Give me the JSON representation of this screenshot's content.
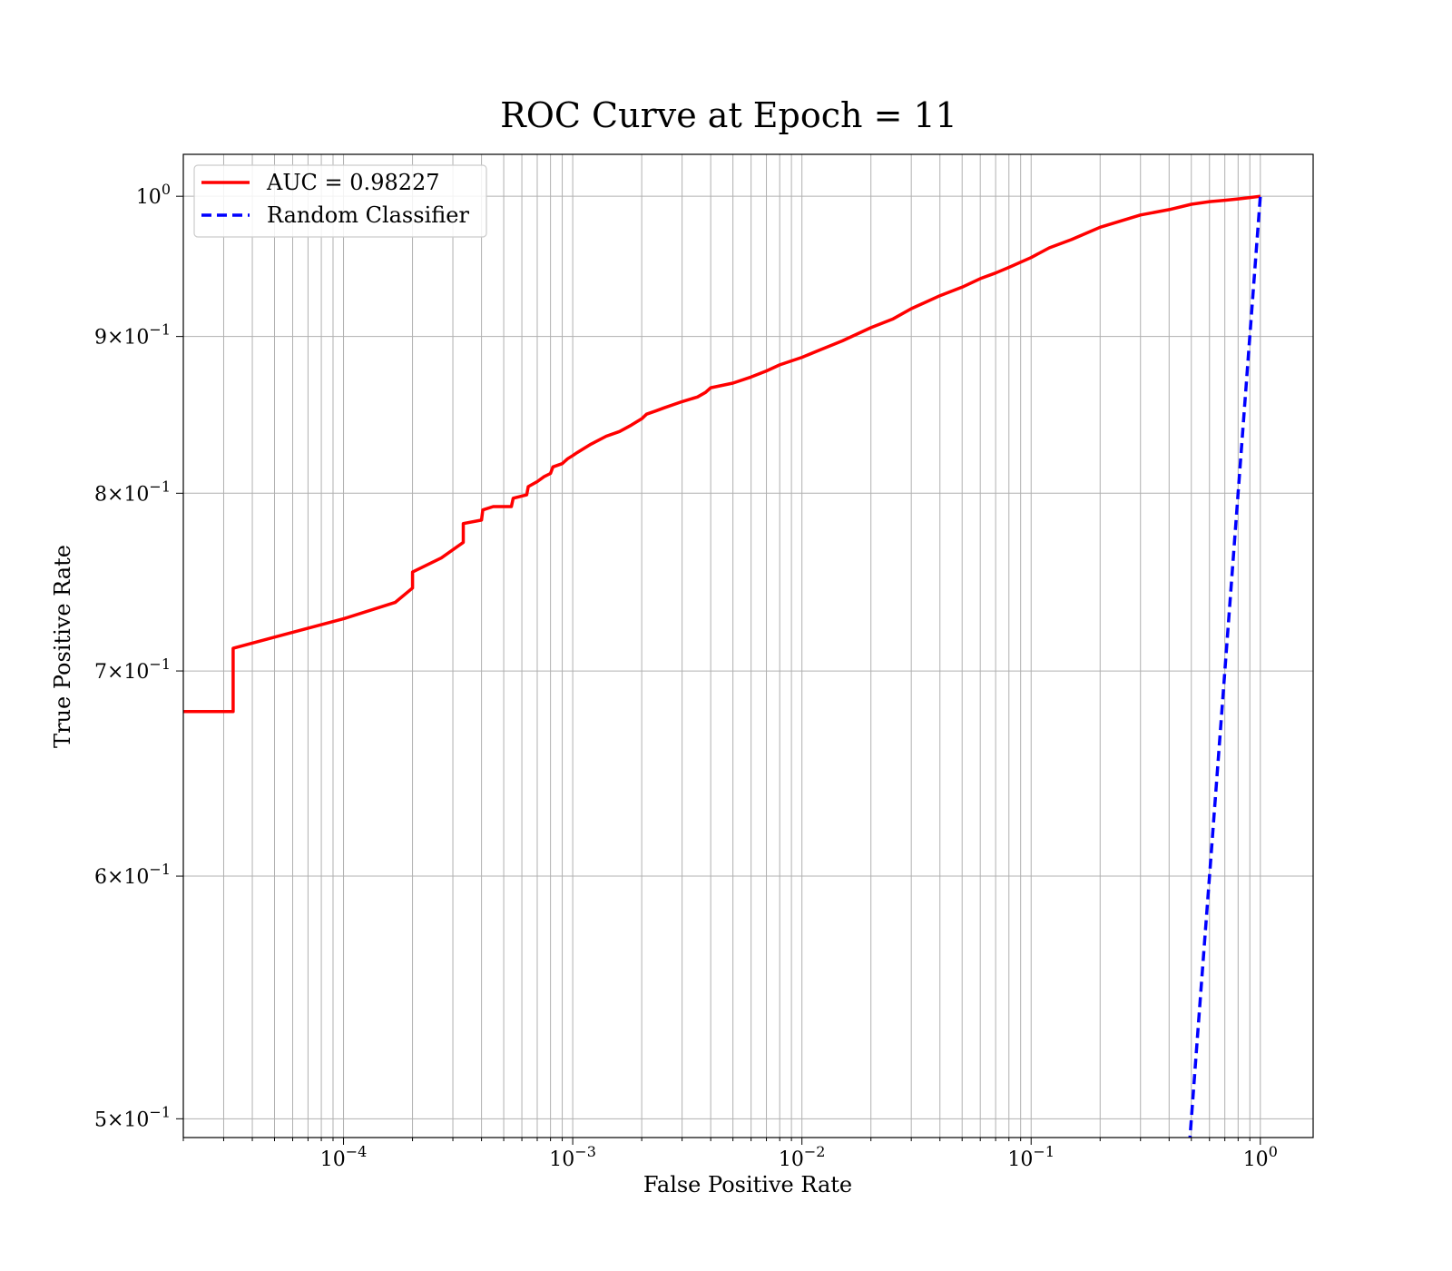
{
  "chart_data": {
    "type": "line",
    "title": "ROC Curve at Epoch = 11",
    "xlabel": "False Positive Rate",
    "ylabel": "True Positive Rate",
    "xscale": "log",
    "yscale": "log",
    "xlim": [
      2e-05,
      1.7
    ],
    "ylim": [
      0.493,
      1.032
    ],
    "grid": true,
    "grid_minor": true,
    "legend_position": "top-left",
    "x_ticks": [
      {
        "value": 0.0001,
        "base": "10",
        "exp": "−4"
      },
      {
        "value": 0.001,
        "base": "10",
        "exp": "−3"
      },
      {
        "value": 0.01,
        "base": "10",
        "exp": "−2"
      },
      {
        "value": 0.1,
        "base": "10",
        "exp": "−1"
      },
      {
        "value": 1,
        "base": "10",
        "exp": "0"
      }
    ],
    "y_ticks": [
      {
        "value": 0.5,
        "mant": "5",
        "base": "10",
        "exp": "−1"
      },
      {
        "value": 0.6,
        "mant": "6",
        "base": "10",
        "exp": "−1"
      },
      {
        "value": 0.7,
        "mant": "7",
        "base": "10",
        "exp": "−1"
      },
      {
        "value": 0.8,
        "mant": "8",
        "base": "10",
        "exp": "−1"
      },
      {
        "value": 0.9,
        "mant": "9",
        "base": "10",
        "exp": "−1"
      },
      {
        "value": 1.0,
        "mant": "",
        "base": "10",
        "exp": "0"
      }
    ],
    "series": [
      {
        "name": "AUC = 0.98227",
        "color": "#ff0000",
        "dash": "solid",
        "x": [
          2e-05,
          3.3e-05,
          3.3e-05,
          5e-05,
          0.0001,
          0.000168,
          0.0002,
          0.0002,
          0.000267,
          0.000333,
          0.000333,
          0.0004,
          0.000405,
          0.00045,
          0.00054,
          0.00055,
          0.00063,
          0.00064,
          0.0007,
          0.00075,
          0.0008,
          0.00082,
          0.0009,
          0.00095,
          0.001,
          0.00105,
          0.0012,
          0.0014,
          0.0016,
          0.0018,
          0.002,
          0.0021,
          0.0023,
          0.0025,
          0.003,
          0.0035,
          0.0038,
          0.004,
          0.005,
          0.006,
          0.007,
          0.008,
          0.01,
          0.012,
          0.015,
          0.02,
          0.025,
          0.03,
          0.04,
          0.05,
          0.06,
          0.07,
          0.08,
          0.1,
          0.12,
          0.15,
          0.2,
          0.3,
          0.4,
          0.5,
          0.6,
          0.7,
          0.8,
          0.9,
          1.0
        ],
        "y": [
          0.679,
          0.679,
          0.712,
          0.718,
          0.728,
          0.737,
          0.745,
          0.754,
          0.762,
          0.771,
          0.782,
          0.784,
          0.79,
          0.792,
          0.792,
          0.797,
          0.799,
          0.804,
          0.807,
          0.81,
          0.812,
          0.816,
          0.818,
          0.821,
          0.823,
          0.825,
          0.83,
          0.835,
          0.838,
          0.842,
          0.846,
          0.849,
          0.851,
          0.853,
          0.857,
          0.86,
          0.863,
          0.866,
          0.869,
          0.873,
          0.877,
          0.881,
          0.886,
          0.891,
          0.897,
          0.906,
          0.912,
          0.919,
          0.928,
          0.934,
          0.94,
          0.944,
          0.948,
          0.955,
          0.962,
          0.968,
          0.977,
          0.986,
          0.99,
          0.994,
          0.996,
          0.997,
          0.998,
          0.999,
          1.0
        ]
      },
      {
        "name": "Random Classifier",
        "color": "#0000ff",
        "dash": "dashed",
        "x": [
          0.49,
          0.55,
          0.6,
          0.7,
          0.8,
          0.9,
          1.0
        ],
        "y": [
          0.49,
          0.55,
          0.6,
          0.7,
          0.8,
          0.9,
          1.0
        ]
      }
    ]
  }
}
